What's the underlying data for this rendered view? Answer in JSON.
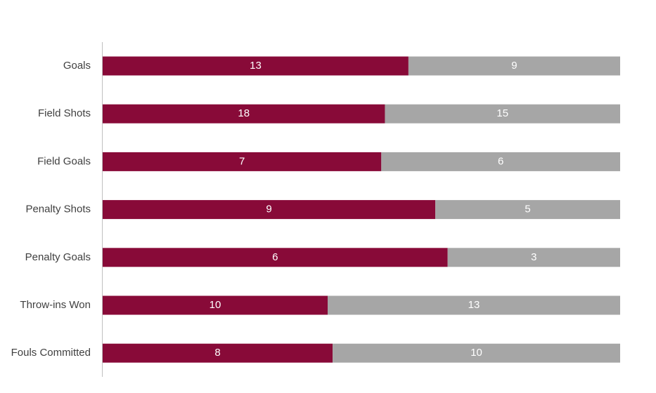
{
  "chart_data": {
    "type": "bar",
    "orientation": "horizontal",
    "stacking": "percent",
    "categories": [
      "Goals",
      "Field Shots",
      "Field Goals",
      "Penalty Shots",
      "Penalty Goals",
      "Throw-ins Won",
      "Fouls Committed"
    ],
    "series": [
      {
        "values": [
          13,
          18,
          7,
          9,
          6,
          10,
          8
        ],
        "color": "#880A38"
      },
      {
        "values": [
          9,
          15,
          6,
          5,
          3,
          13,
          10
        ],
        "color": "#A6A6A6"
      }
    ],
    "data_labels": true,
    "grid": false,
    "legend": "none"
  }
}
